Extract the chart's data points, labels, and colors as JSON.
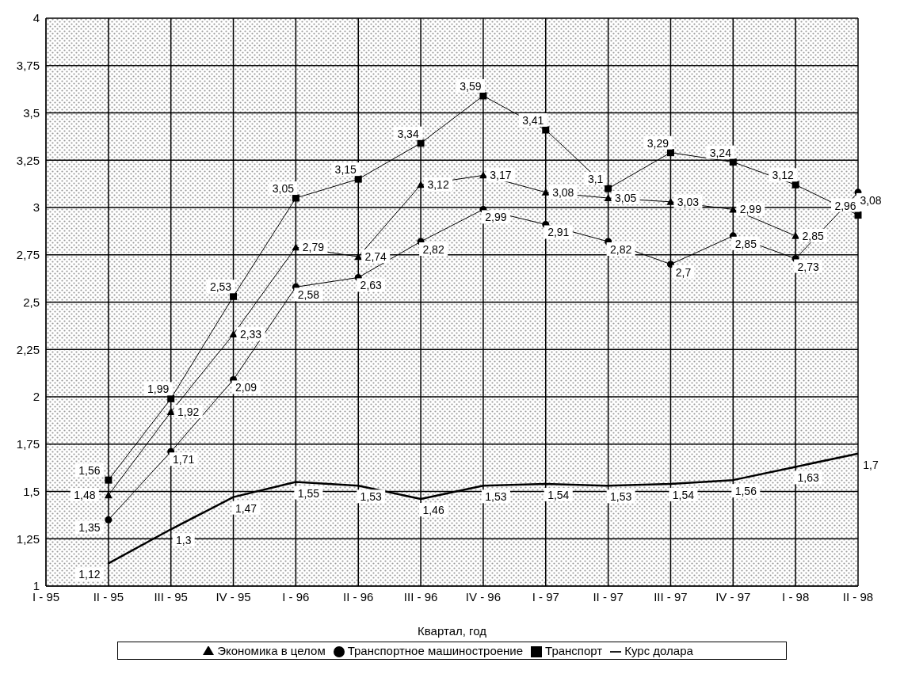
{
  "chart_data": {
    "type": "line",
    "xlabel": "Квартал, год",
    "categories": [
      "I - 95",
      "II - 95",
      "III - 95",
      "IV - 95",
      "I - 96",
      "II - 96",
      "III - 96",
      "IV - 96",
      "I - 97",
      "II - 97",
      "III - 97",
      "IV - 97",
      "I - 98",
      "II - 98"
    ],
    "series": [
      {
        "name": "Экономика в целом",
        "color": "#000000",
        "marker": "triangle",
        "values": [
          null,
          1.48,
          1.92,
          2.33,
          2.79,
          2.74,
          3.12,
          3.17,
          3.08,
          3.05,
          3.03,
          2.99,
          2.85,
          null
        ],
        "value_labels": [
          null,
          "1,48",
          "1,92",
          "2,33",
          "2,79",
          "2,74",
          "3,12",
          "3,17",
          "3,08",
          "3,05",
          "3,03",
          "2,99",
          "2,85",
          null
        ]
      },
      {
        "name": "Транспортное машиностроение",
        "color": "#000000",
        "marker": "circle",
        "values": [
          null,
          1.35,
          1.71,
          2.09,
          2.58,
          2.63,
          2.82,
          2.99,
          2.91,
          2.82,
          2.7,
          2.85,
          2.73,
          3.08
        ],
        "value_labels": [
          null,
          "1,35",
          "1,71",
          "2,09",
          "2,58",
          "2,63",
          "2,82",
          "2,99",
          "2,91",
          "2,82",
          "2,7",
          "2,85",
          "2,73",
          "3,08"
        ]
      },
      {
        "name": "Транспорт",
        "color": "#000000",
        "marker": "square",
        "values": [
          null,
          1.56,
          1.99,
          2.53,
          3.05,
          3.15,
          3.34,
          3.59,
          3.41,
          3.1,
          3.29,
          3.24,
          3.12,
          2.96
        ],
        "value_labels": [
          null,
          "1,56",
          "1,99",
          "2,53",
          "3,05",
          "3,15",
          "3,34",
          "3,59",
          "3,41",
          "3,1",
          "3,29",
          "3,24",
          "3,12",
          "2,96"
        ]
      },
      {
        "name": "Курс долара",
        "color": "#000000",
        "marker": "none",
        "values": [
          null,
          1.12,
          1.3,
          1.47,
          1.55,
          1.53,
          1.46,
          1.53,
          1.54,
          1.53,
          1.54,
          1.56,
          1.63,
          1.7
        ],
        "value_labels": [
          null,
          "1,12",
          "1,3",
          "1,47",
          "1,55",
          "1,53",
          "1,46",
          "1,53",
          "1,54",
          "1,53",
          "1,54",
          "1,56",
          "1,63",
          "1,7"
        ]
      }
    ],
    "ylim": [
      1,
      4
    ],
    "yticks": [
      1,
      {
        "value": 1.25,
        "label": "1,25"
      },
      {
        "value": 1.5,
        "label": "1,5"
      },
      {
        "value": 1.75,
        "label": "1,75"
      },
      2,
      {
        "value": 2.25,
        "label": "2,25"
      },
      {
        "value": 2.5,
        "label": "2,5"
      },
      {
        "value": 2.75,
        "label": "2,75"
      },
      3,
      {
        "value": 3.25,
        "label": "3,25"
      },
      {
        "value": 3.5,
        "label": "3,5"
      },
      {
        "value": 3.75,
        "label": "3,75"
      },
      4
    ],
    "grid": true,
    "legend": "bottom",
    "line_style": "solid"
  }
}
